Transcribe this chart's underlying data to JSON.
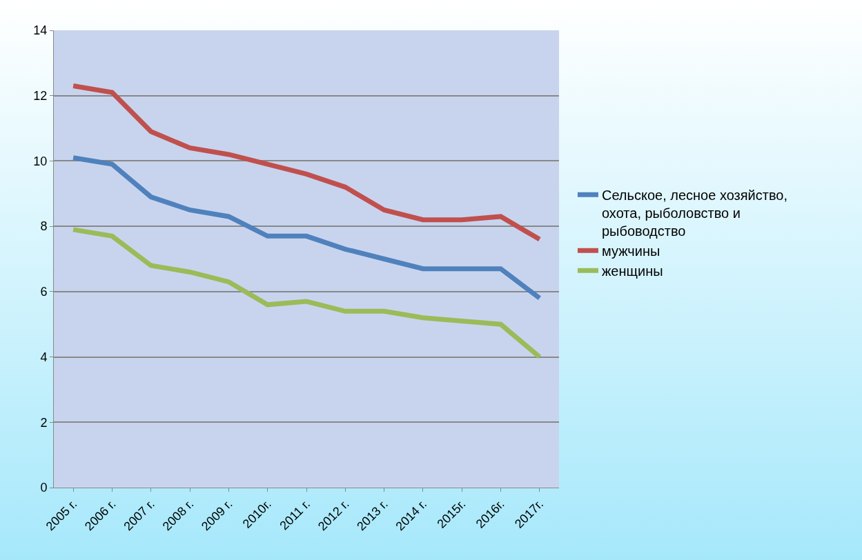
{
  "chart_data": {
    "type": "line",
    "categories": [
      "2005 г.",
      "2006 г.",
      "2007 г.",
      "2008 г.",
      "2009 г.",
      "2010г.",
      "2011 г.",
      "2012 г.",
      "2013 г.",
      "2014 г.",
      "2015г.",
      "2016г.",
      "2017г."
    ],
    "series": [
      {
        "name": "Сельское, лесное хозяйство, охота, рыболовство и рыбоводство",
        "color": "#4f81bd",
        "values": [
          10.1,
          9.9,
          8.9,
          8.5,
          8.3,
          7.7,
          7.7,
          7.3,
          7.0,
          6.7,
          6.7,
          6.7,
          5.8
        ]
      },
      {
        "name": "мужчины",
        "color": "#c0504d",
        "values": [
          12.3,
          12.1,
          10.9,
          10.4,
          10.2,
          9.9,
          9.6,
          9.2,
          8.5,
          8.2,
          8.2,
          8.3,
          7.6
        ]
      },
      {
        "name": "женщины",
        "color": "#9bbb59",
        "values": [
          7.9,
          7.7,
          6.8,
          6.6,
          6.3,
          5.6,
          5.7,
          5.4,
          5.4,
          5.2,
          5.1,
          5.0,
          4.0
        ]
      }
    ],
    "ylim": [
      0,
      14
    ],
    "yticks": [
      0,
      2,
      4,
      6,
      8,
      10,
      12,
      14
    ],
    "grid": "y",
    "legend": "right",
    "marker": "none",
    "line_style": "solid"
  }
}
